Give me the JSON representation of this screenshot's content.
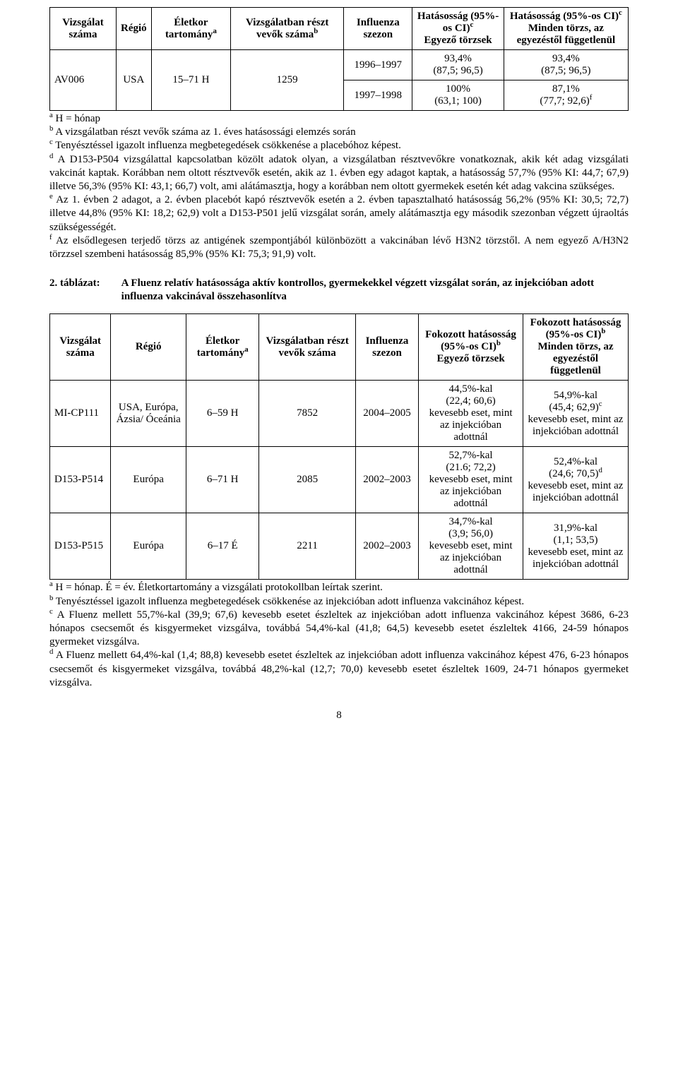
{
  "table1": {
    "headers": {
      "c0": "Vizsgálat száma",
      "c1": "Régió",
      "c2": "Életkor tartomány",
      "c2_sup": "a",
      "c3": "Vizsgálatban részt vevők száma",
      "c3_sup": "b",
      "c4": "Influenza szezon",
      "c5": "Hatásosság (95%-os CI)",
      "c5_sup": "c",
      "c5_line2": "Egyező törzsek",
      "c6": "Hatásosság (95%-os CI)",
      "c6_sup": "c",
      "c6_line2": "Minden törzs, az egyezéstől függetlenül"
    },
    "row": {
      "id": "AV006",
      "region": "USA",
      "age": "15–71 H",
      "n": "1259",
      "s1": "1996–1997",
      "s1_eff_match": "93,4%\n(87,5; 96,5)",
      "s1_eff_all": "93,4%\n(87,5; 96,5)",
      "s2": "1997–1998",
      "s2_eff_match": "100%\n(63,1; 100)",
      "s2_eff_all_line1": "87,1%",
      "s2_eff_all_line2a": "(77,7; 92,6)",
      "s2_eff_all_sup": "f"
    }
  },
  "notes1": {
    "a_sup": "a",
    "a": " H = hónap",
    "b_sup": "b",
    "b": " A vizsgálatban részt vevők száma az 1. éves hatásossági elemzés során",
    "c_sup": "c",
    "c": " Tenyésztéssel igazolt influenza megbetegedések csökkenése a placebóhoz képest.",
    "d_sup": "d",
    "d": " A D153-P504 vizsgálattal kapcsolatban közölt adatok olyan, a vizsgálatban résztvevőkre vonatkoznak, akik két adag vizsgálati vakcinát kaptak. Korábban nem oltott résztvevők esetén, akik az 1. évben egy adagot kaptak, a hatásosság 57,7% (95% KI: 44,7; 67,9) illetve 56,3% (95% KI: 43,1; 66,7) volt, ami alátámasztja, hogy a korábban nem oltott gyermekek esetén két adag vakcina szükséges.",
    "e_sup": "e",
    "e": " Az 1. évben 2 adagot, a 2. évben placebót kapó résztvevők esetén a 2. évben tapasztalható hatásosság 56,2% (95% KI: 30,5; 72,7) illetve 44,8% (95% KI: 18,2; 62,9) volt a D153-P501 jelű vizsgálat során, amely alátámasztja egy második szezonban végzett újraoltás szükségességét.",
    "f_sup": "f",
    "f": " Az elsődlegesen terjedő törzs az antigének szempontjából különbözött a vakcinában lévő H3N2 törzstől. A nem egyező A/H3N2 törzzsel szembeni hatásosság 85,9% (95% KI: 75,3; 91,9) volt."
  },
  "section2": {
    "num": "2. táblázat:",
    "title": "A Fluenz relatív hatásossága aktív kontrollos, gyermekekkel végzett vizsgálat során, az injekcióban adott influenza vakcinával összehasonlítva"
  },
  "table2": {
    "headers": {
      "c0": "Vizsgálat száma",
      "c1": "Régió",
      "c2": "Életkor tartomány",
      "c2_sup": "a",
      "c3": "Vizsgálatban részt vevők száma",
      "c4": "Influenza szezon",
      "c5_l1": "Fokozott hatásosság",
      "c5_l2a": "(95%-os CI)",
      "c5_sup": "b",
      "c5_l3": "Egyező törzsek",
      "c6_l1": "Fokozott hatásosság",
      "c6_l2a": "(95%-os CI)",
      "c6_sup": "b",
      "c6_l3": "Minden törzs, az egyezéstől függetlenül"
    },
    "rows": [
      {
        "id": "MI-CP111",
        "region": "USA, Európa, Ázsia/ Óceánia",
        "age": "6–59 H",
        "n": "7852",
        "season": "2004–2005",
        "match": "44,5%-kal\n(22,4; 60,6)\nkevesebb eset, mint az injekcióban adottnál",
        "all_l1": "54,9%-kal",
        "all_l2a": "(45,4; 62,9)",
        "all_sup": "c",
        "all_rest": "kevesebb eset, mint az injekcióban adottnál"
      },
      {
        "id": "D153-P514",
        "region": "Európa",
        "age": "6–71 H",
        "n": "2085",
        "season": "2002–2003",
        "match": "52,7%-kal\n(21.6; 72,2)\nkevesebb eset, mint az injekcióban adottnál",
        "all_l1": "52,4%-kal",
        "all_l2a": "(24,6; 70,5)",
        "all_sup": "d",
        "all_rest": "kevesebb eset, mint az injekcióban adottnál"
      },
      {
        "id": "D153-P515",
        "region": "Európa",
        "age": "6–17 É",
        "n": "2211",
        "season": "2002–2003",
        "match": "34,7%-kal\n(3,9; 56,0)\nkevesebb eset, mint az injekcióban adottnál",
        "all_l1": "31,9%-kal",
        "all_l2a": "(1,1; 53,5)",
        "all_sup": "",
        "all_rest": "kevesebb eset, mint az injekcióban adottnál"
      }
    ]
  },
  "notes2": {
    "a_sup": "a",
    "a": " H = hónap. É = év. Életkortartomány a vizsgálati protokollban leírtak szerint.",
    "b_sup": "b",
    "b": " Tenyésztéssel igazolt influenza megbetegedések csökkenése az injekcióban adott influenza vakcinához képest.",
    "c_sup": "c",
    "c": " A Fluenz mellett 55,7%-kal (39,9; 67,6) kevesebb esetet észleltek az injekcióban adott influenza vakcinához képest 3686, 6-23 hónapos csecsemőt és kisgyermeket vizsgálva, továbbá 54,4%-kal (41,8; 64,5) kevesebb esetet észleltek 4166, 24-59 hónapos gyermeket vizsgálva.",
    "d_sup": "d",
    "d": " A Fluenz mellett 64,4%-kal (1,4; 88,8) kevesebb esetet észleltek az injekcióban adott influenza vakcinához képest 476, 6-23 hónapos csecsemőt és kisgyermeket vizsgálva, továbbá 48,2%-kal (12,7; 70,0) kevesebb esetet észleltek 1609, 24-71 hónapos gyermeket vizsgálva."
  },
  "page_number": "8"
}
